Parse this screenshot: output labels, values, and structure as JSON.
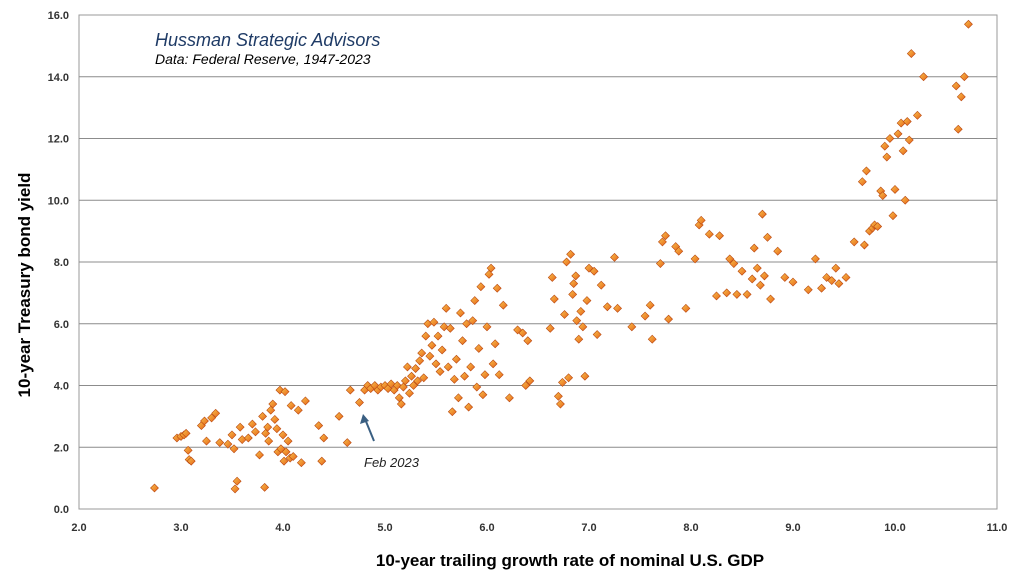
{
  "chart_data": {
    "type": "scatter",
    "title": "Hussman Strategic Advisors",
    "subtitle": "Data: Federal Reserve, 1947-2023",
    "xlabel": "10-year trailing growth rate of nominal U.S. GDP",
    "ylabel": "10-year Treasury bond yield",
    "xlim": [
      2.0,
      11.0
    ],
    "ylim": [
      0.0,
      16.0
    ],
    "xticks": [
      "2.0",
      "3.0",
      "4.0",
      "5.0",
      "6.0",
      "7.0",
      "8.0",
      "9.0",
      "10.0",
      "11.0"
    ],
    "yticks": [
      "0.0",
      "2.0",
      "4.0",
      "6.0",
      "8.0",
      "10.0",
      "12.0",
      "14.0",
      "16.0"
    ],
    "grid": "horizontal",
    "marker_color": "#e8631a",
    "marker_highlight": "#f6c24a",
    "annotation": {
      "text": "Feb 2023",
      "x": 4.76,
      "y": 3.45,
      "color": "#3a5f82"
    },
    "points": [
      [
        2.74,
        0.68
      ],
      [
        2.96,
        2.3
      ],
      [
        3.0,
        2.35
      ],
      [
        3.03,
        2.4
      ],
      [
        3.05,
        2.45
      ],
      [
        3.07,
        1.9
      ],
      [
        3.08,
        1.6
      ],
      [
        3.1,
        1.55
      ],
      [
        3.2,
        2.7
      ],
      [
        3.23,
        2.85
      ],
      [
        3.25,
        2.2
      ],
      [
        3.3,
        2.95
      ],
      [
        3.34,
        3.1
      ],
      [
        3.38,
        2.15
      ],
      [
        3.46,
        2.1
      ],
      [
        3.5,
        2.4
      ],
      [
        3.52,
        1.95
      ],
      [
        3.53,
        0.65
      ],
      [
        3.55,
        0.9
      ],
      [
        3.58,
        2.65
      ],
      [
        3.6,
        2.25
      ],
      [
        3.66,
        2.3
      ],
      [
        3.7,
        2.75
      ],
      [
        3.73,
        2.5
      ],
      [
        3.77,
        1.75
      ],
      [
        3.8,
        3.0
      ],
      [
        3.82,
        0.7
      ],
      [
        3.83,
        2.45
      ],
      [
        3.85,
        2.65
      ],
      [
        3.86,
        2.2
      ],
      [
        3.88,
        3.2
      ],
      [
        3.9,
        3.4
      ],
      [
        3.92,
        2.9
      ],
      [
        3.94,
        2.6
      ],
      [
        3.95,
        1.85
      ],
      [
        3.97,
        3.85
      ],
      [
        3.98,
        1.95
      ],
      [
        4.0,
        2.4
      ],
      [
        4.01,
        1.55
      ],
      [
        4.02,
        3.8
      ],
      [
        4.03,
        1.85
      ],
      [
        4.05,
        2.2
      ],
      [
        4.07,
        1.65
      ],
      [
        4.08,
        3.35
      ],
      [
        4.1,
        1.7
      ],
      [
        4.15,
        3.2
      ],
      [
        4.18,
        1.5
      ],
      [
        4.22,
        3.5
      ],
      [
        4.35,
        2.7
      ],
      [
        4.38,
        1.55
      ],
      [
        4.4,
        2.3
      ],
      [
        4.55,
        3.0
      ],
      [
        4.63,
        2.15
      ],
      [
        4.66,
        3.85
      ],
      [
        4.75,
        3.45
      ],
      [
        4.8,
        3.85
      ],
      [
        4.83,
        4.0
      ],
      [
        4.86,
        3.9
      ],
      [
        4.9,
        4.0
      ],
      [
        4.93,
        3.85
      ],
      [
        4.96,
        3.95
      ],
      [
        5.0,
        4.0
      ],
      [
        5.03,
        3.9
      ],
      [
        5.06,
        4.05
      ],
      [
        5.09,
        3.85
      ],
      [
        5.12,
        4.0
      ],
      [
        5.14,
        3.6
      ],
      [
        5.16,
        3.4
      ],
      [
        5.18,
        3.95
      ],
      [
        5.2,
        4.15
      ],
      [
        5.22,
        4.6
      ],
      [
        5.24,
        3.75
      ],
      [
        5.26,
        4.3
      ],
      [
        5.28,
        4.0
      ],
      [
        5.3,
        4.55
      ],
      [
        5.32,
        4.15
      ],
      [
        5.34,
        4.8
      ],
      [
        5.36,
        5.05
      ],
      [
        5.38,
        4.25
      ],
      [
        5.4,
        5.6
      ],
      [
        5.42,
        6.0
      ],
      [
        5.44,
        4.95
      ],
      [
        5.46,
        5.3
      ],
      [
        5.48,
        6.05
      ],
      [
        5.5,
        4.7
      ],
      [
        5.52,
        5.6
      ],
      [
        5.54,
        4.45
      ],
      [
        5.56,
        5.15
      ],
      [
        5.58,
        5.9
      ],
      [
        5.6,
        6.5
      ],
      [
        5.62,
        4.6
      ],
      [
        5.64,
        5.85
      ],
      [
        5.66,
        3.15
      ],
      [
        5.68,
        4.2
      ],
      [
        5.7,
        4.85
      ],
      [
        5.72,
        3.6
      ],
      [
        5.74,
        6.35
      ],
      [
        5.76,
        5.45
      ],
      [
        5.78,
        4.3
      ],
      [
        5.8,
        6.0
      ],
      [
        5.82,
        3.3
      ],
      [
        5.84,
        4.6
      ],
      [
        5.86,
        6.1
      ],
      [
        5.88,
        6.75
      ],
      [
        5.9,
        3.95
      ],
      [
        5.92,
        5.2
      ],
      [
        5.94,
        7.2
      ],
      [
        5.96,
        3.7
      ],
      [
        5.98,
        4.35
      ],
      [
        6.0,
        5.9
      ],
      [
        6.02,
        7.6
      ],
      [
        6.04,
        7.8
      ],
      [
        6.06,
        4.7
      ],
      [
        6.08,
        5.35
      ],
      [
        6.1,
        7.15
      ],
      [
        6.12,
        4.35
      ],
      [
        6.16,
        6.6
      ],
      [
        6.22,
        3.6
      ],
      [
        6.3,
        5.8
      ],
      [
        6.35,
        5.7
      ],
      [
        6.38,
        4.0
      ],
      [
        6.4,
        5.45
      ],
      [
        6.42,
        4.15
      ],
      [
        6.62,
        5.85
      ],
      [
        6.64,
        7.5
      ],
      [
        6.66,
        6.8
      ],
      [
        6.7,
        3.65
      ],
      [
        6.72,
        3.4
      ],
      [
        6.74,
        4.1
      ],
      [
        6.76,
        6.3
      ],
      [
        6.78,
        8.0
      ],
      [
        6.8,
        4.25
      ],
      [
        6.82,
        8.25
      ],
      [
        6.84,
        6.95
      ],
      [
        6.85,
        7.3
      ],
      [
        6.87,
        7.55
      ],
      [
        6.88,
        6.1
      ],
      [
        6.9,
        5.5
      ],
      [
        6.92,
        6.4
      ],
      [
        6.94,
        5.9
      ],
      [
        6.96,
        4.3
      ],
      [
        6.98,
        6.75
      ],
      [
        7.0,
        7.8
      ],
      [
        7.05,
        7.7
      ],
      [
        7.08,
        5.65
      ],
      [
        7.12,
        7.25
      ],
      [
        7.18,
        6.55
      ],
      [
        7.25,
        8.15
      ],
      [
        7.28,
        6.5
      ],
      [
        7.42,
        5.9
      ],
      [
        7.55,
        6.25
      ],
      [
        7.6,
        6.6
      ],
      [
        7.62,
        5.5
      ],
      [
        7.7,
        7.95
      ],
      [
        7.72,
        8.65
      ],
      [
        7.75,
        8.85
      ],
      [
        7.78,
        6.15
      ],
      [
        7.85,
        8.5
      ],
      [
        7.88,
        8.35
      ],
      [
        7.95,
        6.5
      ],
      [
        8.04,
        8.1
      ],
      [
        8.08,
        9.2
      ],
      [
        8.1,
        9.35
      ],
      [
        8.18,
        8.9
      ],
      [
        8.25,
        6.9
      ],
      [
        8.28,
        8.85
      ],
      [
        8.35,
        7.0
      ],
      [
        8.38,
        8.1
      ],
      [
        8.42,
        7.95
      ],
      [
        8.45,
        6.95
      ],
      [
        8.5,
        7.7
      ],
      [
        8.55,
        6.95
      ],
      [
        8.6,
        7.45
      ],
      [
        8.62,
        8.45
      ],
      [
        8.65,
        7.8
      ],
      [
        8.68,
        7.25
      ],
      [
        8.7,
        9.55
      ],
      [
        8.72,
        7.55
      ],
      [
        8.75,
        8.8
      ],
      [
        8.78,
        6.8
      ],
      [
        8.85,
        8.35
      ],
      [
        8.92,
        7.5
      ],
      [
        9.0,
        7.35
      ],
      [
        9.15,
        7.1
      ],
      [
        9.22,
        8.1
      ],
      [
        9.28,
        7.15
      ],
      [
        9.33,
        7.5
      ],
      [
        9.38,
        7.4
      ],
      [
        9.42,
        7.8
      ],
      [
        9.45,
        7.3
      ],
      [
        9.52,
        7.5
      ],
      [
        9.6,
        8.65
      ],
      [
        9.68,
        10.6
      ],
      [
        9.7,
        8.55
      ],
      [
        9.72,
        10.95
      ],
      [
        9.75,
        9.0
      ],
      [
        9.78,
        9.1
      ],
      [
        9.8,
        9.2
      ],
      [
        9.83,
        9.15
      ],
      [
        9.86,
        10.3
      ],
      [
        9.88,
        10.15
      ],
      [
        9.9,
        11.75
      ],
      [
        9.92,
        11.4
      ],
      [
        9.95,
        12.0
      ],
      [
        9.98,
        9.5
      ],
      [
        10.0,
        10.35
      ],
      [
        10.03,
        12.15
      ],
      [
        10.06,
        12.5
      ],
      [
        10.08,
        11.6
      ],
      [
        10.1,
        10.0
      ],
      [
        10.12,
        12.55
      ],
      [
        10.14,
        11.95
      ],
      [
        10.16,
        14.75
      ],
      [
        10.22,
        12.75
      ],
      [
        10.28,
        14.0
      ],
      [
        10.62,
        12.3
      ],
      [
        10.6,
        13.7
      ],
      [
        10.65,
        13.35
      ],
      [
        10.68,
        14.0
      ],
      [
        10.72,
        15.7
      ]
    ]
  }
}
